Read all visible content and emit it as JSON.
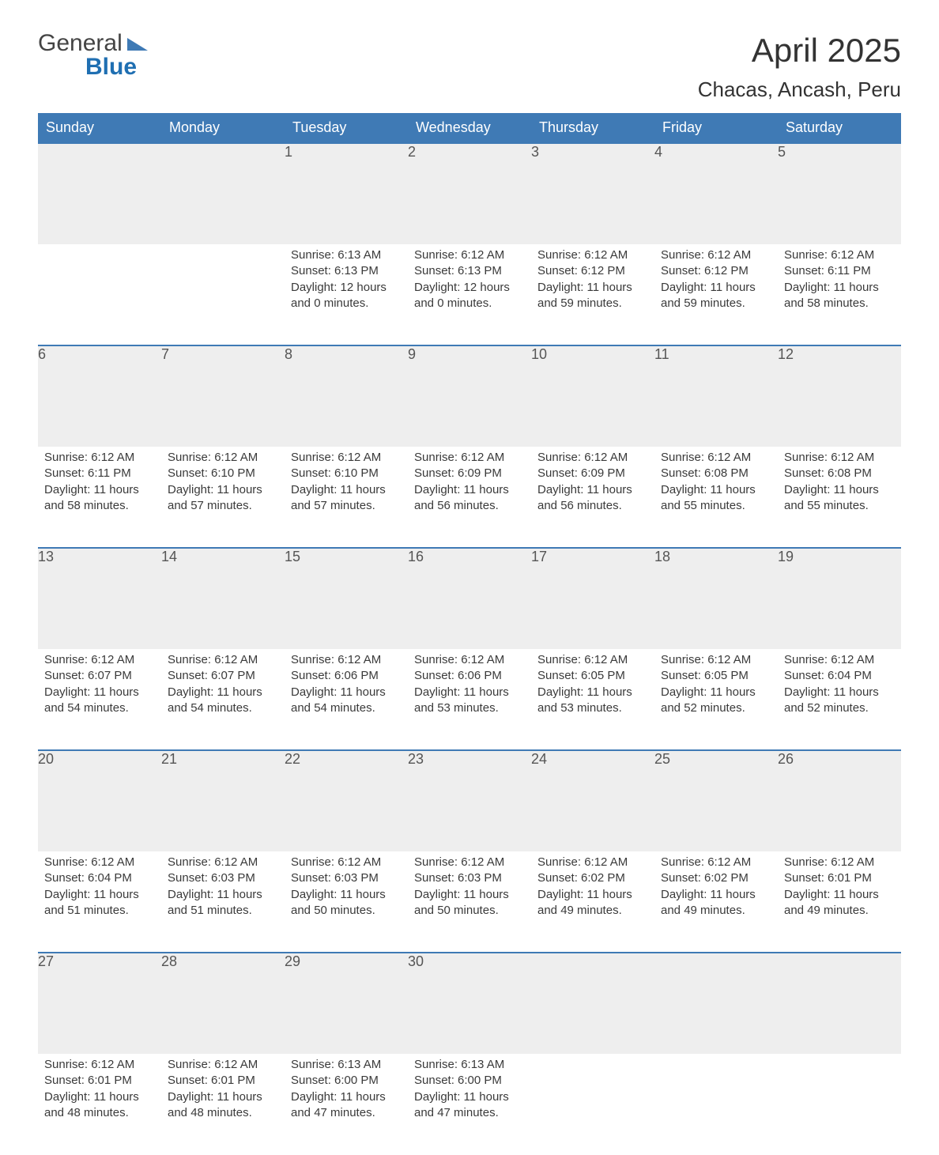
{
  "logo": {
    "word1": "General",
    "word2": "Blue"
  },
  "title": "April 2025",
  "location": "Chacas, Ancash, Peru",
  "colors": {
    "header_blue": "#3f7ab5",
    "accent_blue": "#1f6fb2",
    "daynum_grey": "#eeeeee",
    "text": "#3a3a3a"
  },
  "typography": {
    "title_fontsize_pt": 32,
    "location_fontsize_pt": 20,
    "header_fontsize_pt": 14,
    "body_fontsize_pt": 11,
    "font_family": "Arial"
  },
  "calendar": {
    "type": "table",
    "columns": [
      "Sunday",
      "Monday",
      "Tuesday",
      "Wednesday",
      "Thursday",
      "Friday",
      "Saturday"
    ],
    "weeks": [
      [
        null,
        null,
        {
          "day": "1",
          "sunrise": "Sunrise: 6:13 AM",
          "sunset": "Sunset: 6:13 PM",
          "daylight1": "Daylight: 12 hours",
          "daylight2": "and 0 minutes."
        },
        {
          "day": "2",
          "sunrise": "Sunrise: 6:12 AM",
          "sunset": "Sunset: 6:13 PM",
          "daylight1": "Daylight: 12 hours",
          "daylight2": "and 0 minutes."
        },
        {
          "day": "3",
          "sunrise": "Sunrise: 6:12 AM",
          "sunset": "Sunset: 6:12 PM",
          "daylight1": "Daylight: 11 hours",
          "daylight2": "and 59 minutes."
        },
        {
          "day": "4",
          "sunrise": "Sunrise: 6:12 AM",
          "sunset": "Sunset: 6:12 PM",
          "daylight1": "Daylight: 11 hours",
          "daylight2": "and 59 minutes."
        },
        {
          "day": "5",
          "sunrise": "Sunrise: 6:12 AM",
          "sunset": "Sunset: 6:11 PM",
          "daylight1": "Daylight: 11 hours",
          "daylight2": "and 58 minutes."
        }
      ],
      [
        {
          "day": "6",
          "sunrise": "Sunrise: 6:12 AM",
          "sunset": "Sunset: 6:11 PM",
          "daylight1": "Daylight: 11 hours",
          "daylight2": "and 58 minutes."
        },
        {
          "day": "7",
          "sunrise": "Sunrise: 6:12 AM",
          "sunset": "Sunset: 6:10 PM",
          "daylight1": "Daylight: 11 hours",
          "daylight2": "and 57 minutes."
        },
        {
          "day": "8",
          "sunrise": "Sunrise: 6:12 AM",
          "sunset": "Sunset: 6:10 PM",
          "daylight1": "Daylight: 11 hours",
          "daylight2": "and 57 minutes."
        },
        {
          "day": "9",
          "sunrise": "Sunrise: 6:12 AM",
          "sunset": "Sunset: 6:09 PM",
          "daylight1": "Daylight: 11 hours",
          "daylight2": "and 56 minutes."
        },
        {
          "day": "10",
          "sunrise": "Sunrise: 6:12 AM",
          "sunset": "Sunset: 6:09 PM",
          "daylight1": "Daylight: 11 hours",
          "daylight2": "and 56 minutes."
        },
        {
          "day": "11",
          "sunrise": "Sunrise: 6:12 AM",
          "sunset": "Sunset: 6:08 PM",
          "daylight1": "Daylight: 11 hours",
          "daylight2": "and 55 minutes."
        },
        {
          "day": "12",
          "sunrise": "Sunrise: 6:12 AM",
          "sunset": "Sunset: 6:08 PM",
          "daylight1": "Daylight: 11 hours",
          "daylight2": "and 55 minutes."
        }
      ],
      [
        {
          "day": "13",
          "sunrise": "Sunrise: 6:12 AM",
          "sunset": "Sunset: 6:07 PM",
          "daylight1": "Daylight: 11 hours",
          "daylight2": "and 54 minutes."
        },
        {
          "day": "14",
          "sunrise": "Sunrise: 6:12 AM",
          "sunset": "Sunset: 6:07 PM",
          "daylight1": "Daylight: 11 hours",
          "daylight2": "and 54 minutes."
        },
        {
          "day": "15",
          "sunrise": "Sunrise: 6:12 AM",
          "sunset": "Sunset: 6:06 PM",
          "daylight1": "Daylight: 11 hours",
          "daylight2": "and 54 minutes."
        },
        {
          "day": "16",
          "sunrise": "Sunrise: 6:12 AM",
          "sunset": "Sunset: 6:06 PM",
          "daylight1": "Daylight: 11 hours",
          "daylight2": "and 53 minutes."
        },
        {
          "day": "17",
          "sunrise": "Sunrise: 6:12 AM",
          "sunset": "Sunset: 6:05 PM",
          "daylight1": "Daylight: 11 hours",
          "daylight2": "and 53 minutes."
        },
        {
          "day": "18",
          "sunrise": "Sunrise: 6:12 AM",
          "sunset": "Sunset: 6:05 PM",
          "daylight1": "Daylight: 11 hours",
          "daylight2": "and 52 minutes."
        },
        {
          "day": "19",
          "sunrise": "Sunrise: 6:12 AM",
          "sunset": "Sunset: 6:04 PM",
          "daylight1": "Daylight: 11 hours",
          "daylight2": "and 52 minutes."
        }
      ],
      [
        {
          "day": "20",
          "sunrise": "Sunrise: 6:12 AM",
          "sunset": "Sunset: 6:04 PM",
          "daylight1": "Daylight: 11 hours",
          "daylight2": "and 51 minutes."
        },
        {
          "day": "21",
          "sunrise": "Sunrise: 6:12 AM",
          "sunset": "Sunset: 6:03 PM",
          "daylight1": "Daylight: 11 hours",
          "daylight2": "and 51 minutes."
        },
        {
          "day": "22",
          "sunrise": "Sunrise: 6:12 AM",
          "sunset": "Sunset: 6:03 PM",
          "daylight1": "Daylight: 11 hours",
          "daylight2": "and 50 minutes."
        },
        {
          "day": "23",
          "sunrise": "Sunrise: 6:12 AM",
          "sunset": "Sunset: 6:03 PM",
          "daylight1": "Daylight: 11 hours",
          "daylight2": "and 50 minutes."
        },
        {
          "day": "24",
          "sunrise": "Sunrise: 6:12 AM",
          "sunset": "Sunset: 6:02 PM",
          "daylight1": "Daylight: 11 hours",
          "daylight2": "and 49 minutes."
        },
        {
          "day": "25",
          "sunrise": "Sunrise: 6:12 AM",
          "sunset": "Sunset: 6:02 PM",
          "daylight1": "Daylight: 11 hours",
          "daylight2": "and 49 minutes."
        },
        {
          "day": "26",
          "sunrise": "Sunrise: 6:12 AM",
          "sunset": "Sunset: 6:01 PM",
          "daylight1": "Daylight: 11 hours",
          "daylight2": "and 49 minutes."
        }
      ],
      [
        {
          "day": "27",
          "sunrise": "Sunrise: 6:12 AM",
          "sunset": "Sunset: 6:01 PM",
          "daylight1": "Daylight: 11 hours",
          "daylight2": "and 48 minutes."
        },
        {
          "day": "28",
          "sunrise": "Sunrise: 6:12 AM",
          "sunset": "Sunset: 6:01 PM",
          "daylight1": "Daylight: 11 hours",
          "daylight2": "and 48 minutes."
        },
        {
          "day": "29",
          "sunrise": "Sunrise: 6:13 AM",
          "sunset": "Sunset: 6:00 PM",
          "daylight1": "Daylight: 11 hours",
          "daylight2": "and 47 minutes."
        },
        {
          "day": "30",
          "sunrise": "Sunrise: 6:13 AM",
          "sunset": "Sunset: 6:00 PM",
          "daylight1": "Daylight: 11 hours",
          "daylight2": "and 47 minutes."
        },
        null,
        null,
        null
      ]
    ]
  }
}
